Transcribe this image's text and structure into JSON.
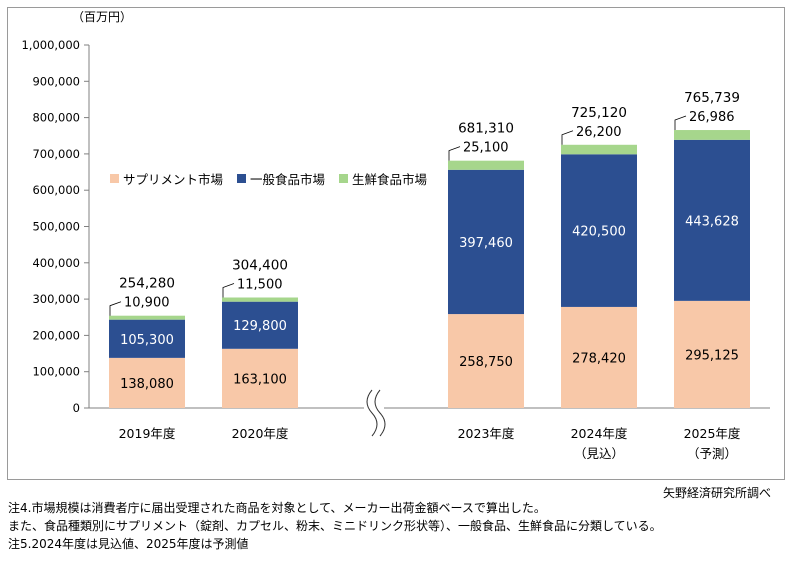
{
  "chart_data": {
    "type": "bar",
    "stacked": true,
    "unit_label": "（百万円）",
    "ylim": [
      0,
      1000000
    ],
    "y_ticks": [
      "0",
      "100,000",
      "200,000",
      "300,000",
      "400,000",
      "500,000",
      "600,000",
      "700,000",
      "800,000",
      "900,000",
      "1,000,000"
    ],
    "categories": [
      {
        "line1": "2019年度",
        "line2": ""
      },
      {
        "line1": "2020年度",
        "line2": ""
      },
      {
        "line1": "2023年度",
        "line2": ""
      },
      {
        "line1": "2024年度",
        "line2": "（見込）"
      },
      {
        "line1": "2025年度",
        "line2": "（予測）"
      }
    ],
    "series": [
      {
        "name": "サプリメント市場",
        "color": "#f8c8a8",
        "values": [
          138080,
          163100,
          258750,
          278420,
          295125
        ],
        "labels": [
          "138,080",
          "163,100",
          "258,750",
          "278,420",
          "295,125"
        ]
      },
      {
        "name": "一般食品市場",
        "color": "#2c4f91",
        "values": [
          105300,
          129800,
          397460,
          420500,
          443628
        ],
        "labels": [
          "105,300",
          "129,800",
          "397,460",
          "420,500",
          "443,628"
        ]
      },
      {
        "name": "生鮮食品市場",
        "color": "#a6d68c",
        "values": [
          10900,
          11500,
          25100,
          26200,
          26986
        ],
        "labels": [
          "10,900",
          "11,500",
          "25,100",
          "26,200",
          "26,986"
        ]
      }
    ],
    "totals": [
      "254,280",
      "304,400",
      "681,310",
      "725,120",
      "765,739"
    ],
    "axis_break": true,
    "legend_position": "top-left"
  },
  "notes": [
    "注4.市場規模は消費者庁に届出受理された商品を対象として、メーカー出荷金額ベースで算出した。",
    "また、食品種類別にサプリメント（錠剤、カプセル、粉末、ミニドリンク形状等）、一般食品、生鮮食品に分類している。",
    "注5.2024年度は見込値、2025年度は予測値"
  ],
  "source": "矢野経済研究所調べ"
}
